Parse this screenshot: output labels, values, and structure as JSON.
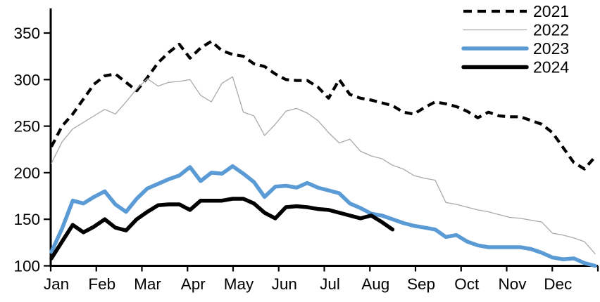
{
  "chart_data": {
    "type": "line",
    "title": "",
    "x_unit": "weekly",
    "x_axis": {
      "tick_labels": [
        "Jan",
        "Feb",
        "Mar",
        "Apr",
        "May",
        "Jun",
        "Jul",
        "Aug",
        "Sep",
        "Oct",
        "Nov",
        "Dec"
      ],
      "grid": false
    },
    "y_axis": {
      "ticks": [
        100,
        150,
        200,
        250,
        300,
        350
      ],
      "range": [
        100,
        370
      ],
      "grid": false
    },
    "legend": {
      "position": "top-right",
      "entries": [
        {
          "label": "2021",
          "style": "dashed",
          "color": "#000000"
        },
        {
          "label": "2022",
          "style": "thin-solid",
          "color": "#a9a9a9"
        },
        {
          "label": "2023",
          "style": "thick-solid",
          "color": "#5b9bd5"
        },
        {
          "label": "2024",
          "style": "thick-solid",
          "color": "#000000"
        }
      ]
    },
    "colors": {
      "accent_blue": "#5b9bd5",
      "gray": "#a9a9a9",
      "black": "#000000"
    },
    "series": [
      {
        "name": "2021",
        "color": "#000000",
        "style": "dashed",
        "stroke_width": 4.2,
        "values": [
          228,
          250,
          263,
          279,
          295,
          304,
          306,
          297,
          288,
          302,
          318,
          329,
          338,
          323,
          334,
          341,
          331,
          327,
          325,
          317,
          314,
          306,
          300,
          299,
          299,
          292,
          280,
          300,
          284,
          280,
          278,
          275,
          272,
          265,
          263,
          270,
          276,
          274,
          271,
          266,
          259,
          265,
          261,
          260,
          260,
          256,
          252,
          243,
          227,
          211,
          204,
          217
        ]
      },
      {
        "name": "2022",
        "color": "#a9a9a9",
        "style": "solid",
        "stroke_width": 1.3,
        "values": [
          210,
          233,
          247,
          254,
          261,
          268,
          263,
          276,
          290,
          301,
          293,
          297,
          298,
          300,
          283,
          276,
          296,
          303,
          265,
          261,
          240,
          252,
          266,
          269,
          264,
          256,
          243,
          232,
          236,
          223,
          218,
          215,
          208,
          204,
          197,
          194,
          192,
          168,
          166,
          163,
          160,
          158,
          155,
          152,
          151,
          149,
          147,
          135,
          133,
          130,
          126,
          113
        ]
      },
      {
        "name": "2023",
        "color": "#5b9bd5",
        "style": "solid",
        "stroke_width": 5.5,
        "values": [
          115,
          140,
          170,
          167,
          174,
          180,
          166,
          158,
          172,
          183,
          188,
          193,
          197,
          206,
          191,
          200,
          199,
          207,
          199,
          190,
          174,
          185,
          186,
          184,
          189,
          184,
          181,
          178,
          167,
          162,
          156,
          154,
          150,
          146,
          143,
          141,
          139,
          131,
          133,
          126,
          122,
          120,
          120,
          120,
          120,
          118,
          114,
          109,
          107,
          108,
          103,
          100
        ]
      },
      {
        "name": "2024",
        "color": "#000000",
        "style": "solid",
        "stroke_width": 5.5,
        "values": [
          108,
          126,
          144,
          136,
          142,
          150,
          141,
          138,
          150,
          158,
          165,
          166,
          166,
          160,
          170,
          170,
          170,
          172,
          172,
          167,
          157,
          151,
          163,
          164,
          163,
          161,
          160,
          157,
          154,
          151,
          154,
          147,
          139
        ]
      }
    ]
  }
}
